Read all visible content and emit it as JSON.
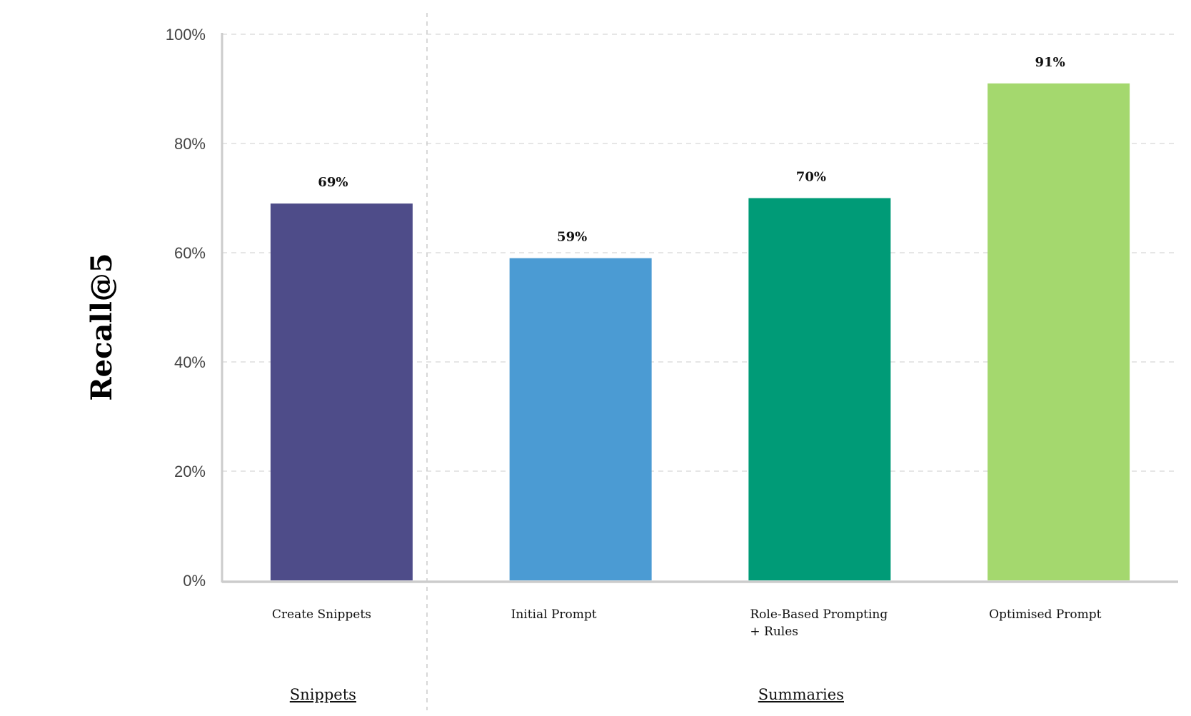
{
  "chart_data": {
    "type": "bar",
    "categories": [
      "Create Snippets",
      "Initial Prompt",
      "Role-Based Prompting + Rules",
      "Optimised Prompt"
    ],
    "category_lines": [
      [
        "Create Snippets"
      ],
      [
        "Initial Prompt"
      ],
      [
        "Role-Based Prompting",
        "+ Rules"
      ],
      [
        "Optimised Prompt"
      ]
    ],
    "values": [
      69,
      59,
      70,
      91
    ],
    "value_labels": [
      "69%",
      "59%",
      "70%",
      "91%"
    ],
    "colors": [
      "#4e4c89",
      "#4b9bd3",
      "#009b77",
      "#a4d86e"
    ],
    "ylabel": "Recall@5",
    "ylim": [
      0,
      100
    ],
    "yticks": [
      0,
      20,
      40,
      60,
      80,
      100
    ],
    "ytick_labels": [
      "0%",
      "20%",
      "40%",
      "60%",
      "80%",
      "100%"
    ],
    "grid": true,
    "groups": [
      {
        "label": "Snippets",
        "categories": [
          0
        ]
      },
      {
        "label": "Summaries",
        "categories": [
          1,
          2,
          3
        ]
      }
    ]
  }
}
